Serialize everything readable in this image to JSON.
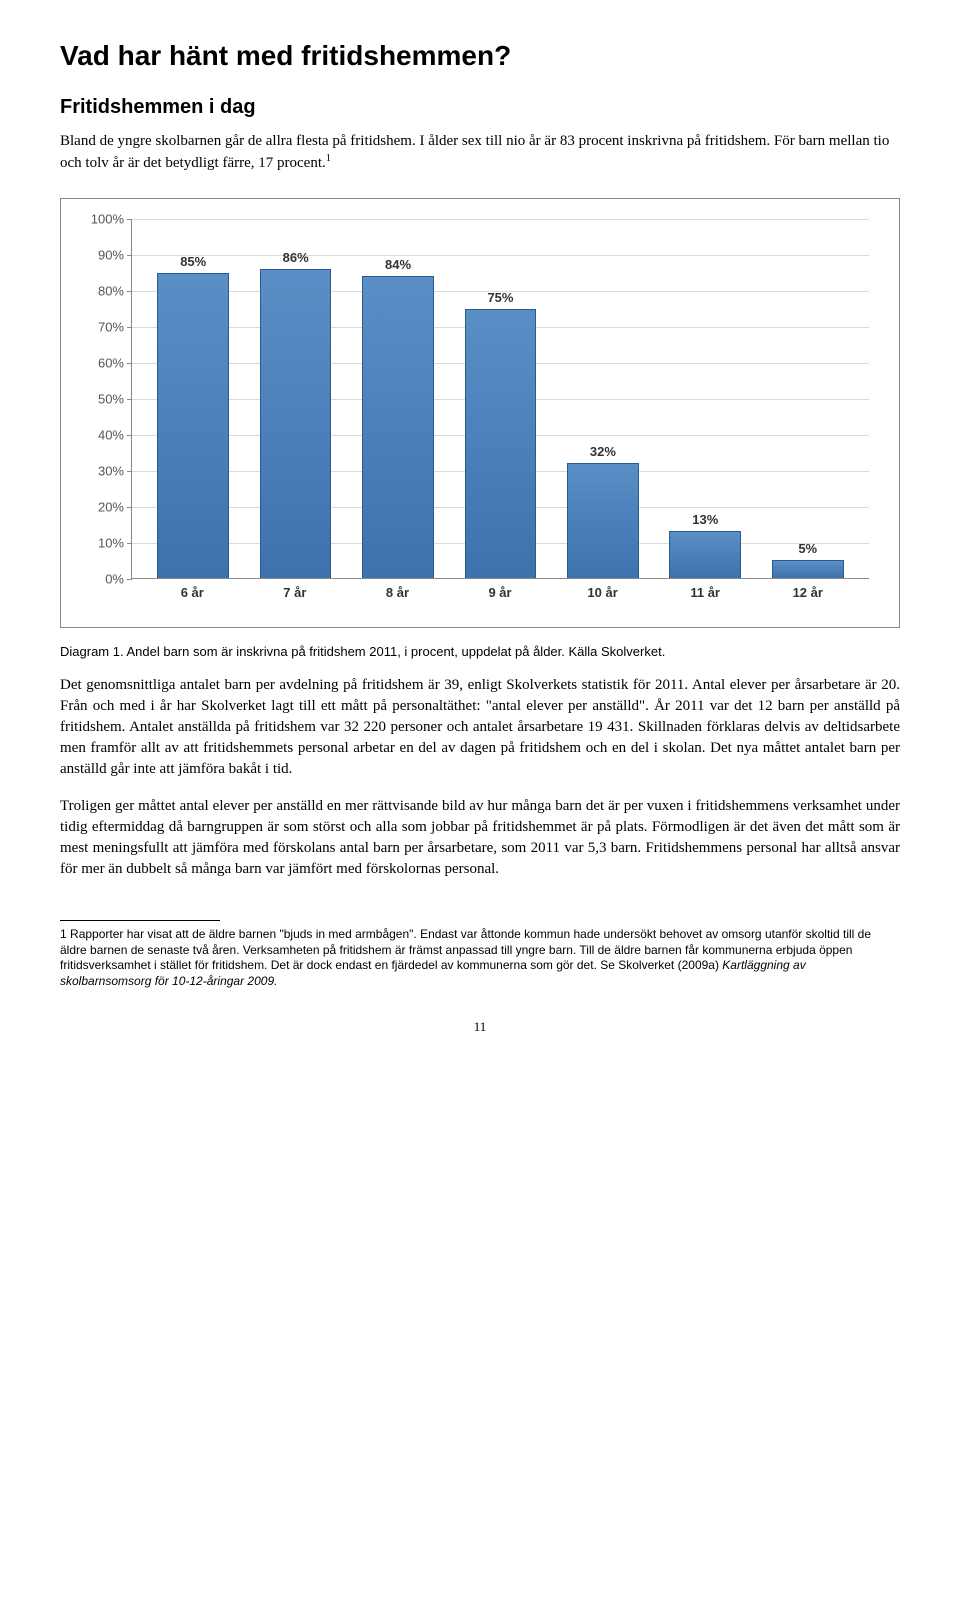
{
  "heading": "Vad har hänt med fritidshemmen?",
  "subheading": "Fritidshemmen i dag",
  "intro": "Bland de yngre skolbarnen går de allra flesta på fritidshem. I ålder sex till nio år är 83 procent inskrivna på fritidshem. För barn mellan tio och tolv år är det betydligt färre, 17 procent.",
  "intro_sup": "1",
  "chart": {
    "type": "bar",
    "categories": [
      "6 år",
      "7 år",
      "8 år",
      "9 år",
      "10 år",
      "11 år",
      "12 år"
    ],
    "values": [
      85,
      86,
      84,
      75,
      32,
      13,
      5
    ],
    "value_labels": [
      "85%",
      "86%",
      "84%",
      "75%",
      "32%",
      "13%",
      "5%"
    ],
    "bar_color": "#4a7db8",
    "bar_border": "#2c5a8c",
    "ytick_labels": [
      "0%",
      "10%",
      "20%",
      "30%",
      "40%",
      "50%",
      "60%",
      "70%",
      "80%",
      "90%",
      "100%"
    ],
    "ytick_values": [
      0,
      10,
      20,
      30,
      40,
      50,
      60,
      70,
      80,
      90,
      100
    ],
    "ymax": 100,
    "grid_color": "#d9d9d9",
    "axis_color": "#888888",
    "background_color": "#ffffff",
    "label_fontsize": 13,
    "bar_width_pct": 70
  },
  "caption": "Diagram 1. Andel barn som är inskrivna på fritidshem 2011, i procent, uppdelat på ålder. Källa Skolverket.",
  "para1": "Det genomsnittliga antalet barn per avdelning på fritidshem är 39, enligt Skolverkets statistik för 2011. Antal elever per årsarbetare är 20. Från och med i år har Skolverket lagt till ett mått på personaltäthet: \"antal elever per anställd\". År 2011 var det 12 barn per anställd på fritidshem. Antalet anställda på fritidshem var 32 220 personer och antalet årsarbetare 19 431. Skillnaden förklaras delvis av deltidsarbete men framför allt av att fritidshemmets personal arbetar en del av dagen på fritidshem och en del i skolan. Det nya måttet antalet barn per anställd går inte att jämföra bakåt i tid.",
  "para2": "Troligen ger måttet antal elever per anställd en mer rättvisande bild av hur många barn det är per vuxen i fritidshemmens verksamhet under tidig eftermiddag då barngruppen är som störst och alla som jobbar på fritidshemmet är på plats. Förmodligen är det även det mått som är mest meningsfullt att jämföra med förskolans antal barn per årsarbetare, som 2011 var 5,3 barn. Fritidshemmens personal har alltså ansvar för mer än dubbelt så många barn var jämfört med förskolornas personal.",
  "footnote_num": "1",
  "footnote_a": " Rapporter har visat att de äldre barnen \"bjuds in med armbågen\". Endast var åttonde kommun hade undersökt behovet av omsorg utanför skoltid till de äldre barnen de senaste två åren. Verksamheten på fritidshem är främst anpassad till yngre barn. Till de äldre barnen får kommunerna erbjuda öppen fritidsverksamhet i stället för fritidshem. Det är dock endast en fjärdedel av kommunerna som gör det. Se Skolverket (2009a) ",
  "footnote_em": "Kartläggning av skolbarnsomsorg för 10-12-åringar 2009.",
  "page_number": "11"
}
